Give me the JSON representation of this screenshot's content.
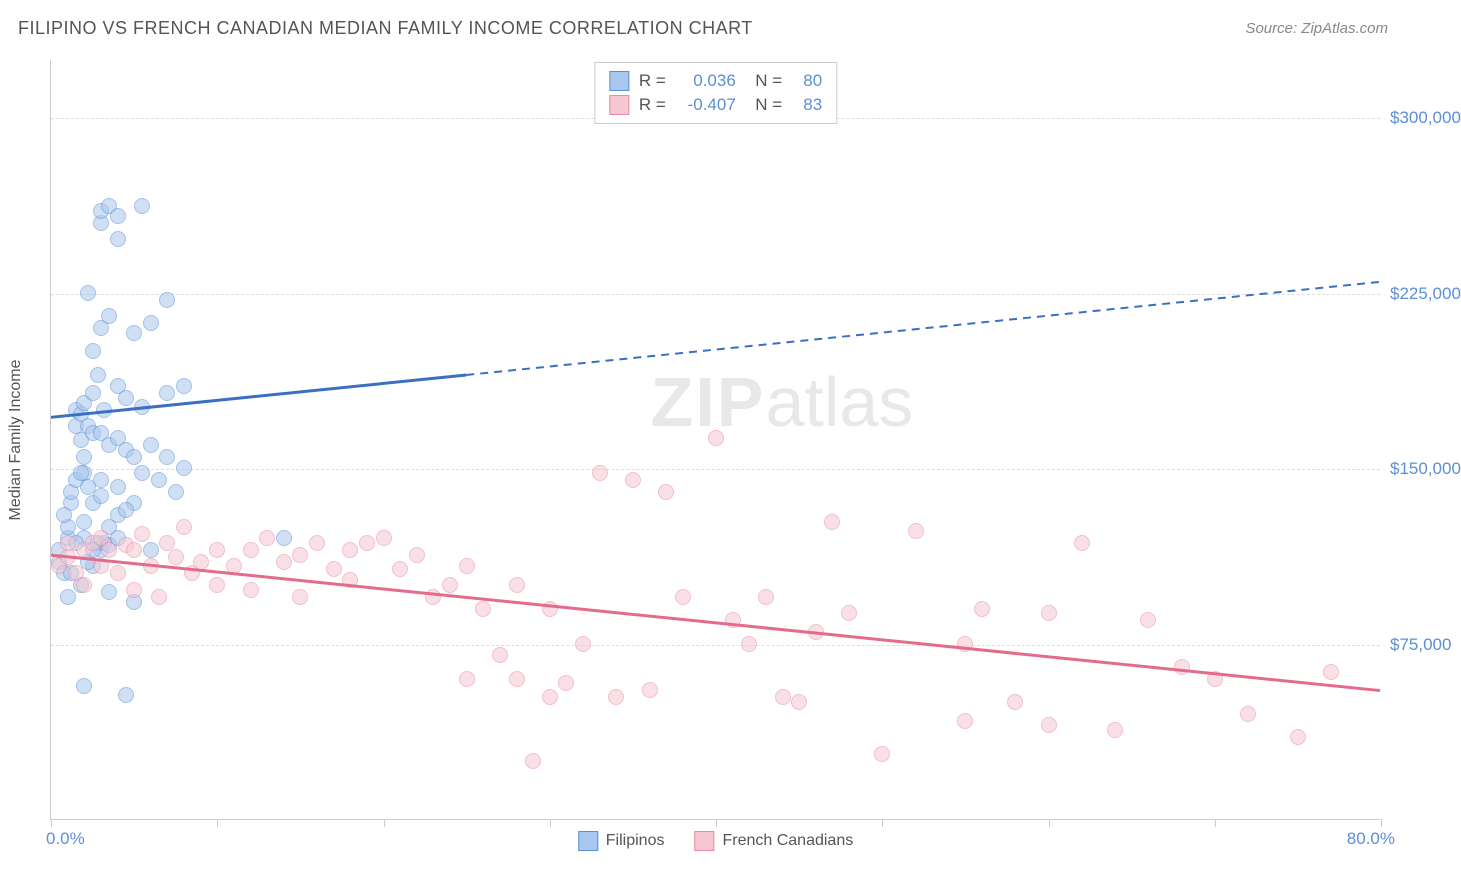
{
  "header": {
    "title": "FILIPINO VS FRENCH CANADIAN MEDIAN FAMILY INCOME CORRELATION CHART",
    "source": "Source: ZipAtlas.com"
  },
  "chart": {
    "type": "scatter",
    "y_axis_title": "Median Family Income",
    "xlim": [
      0,
      80
    ],
    "ylim": [
      0,
      325000
    ],
    "x_tick_step": 10,
    "x_min_label": "0.0%",
    "x_max_label": "80.0%",
    "y_ticks": [
      75000,
      150000,
      225000,
      300000
    ],
    "y_tick_labels": [
      "$75,000",
      "$150,000",
      "$225,000",
      "$300,000"
    ],
    "grid_color": "#dddddd",
    "border_color": "#cccccc",
    "tick_label_color": "#5b8fd6",
    "axis_title_color": "#555555",
    "background_color": "#ffffff",
    "watermark_text_bold": "ZIP",
    "watermark_text_light": "atlas",
    "watermark_color": "#e8e8e8",
    "point_radius": 8,
    "point_opacity": 0.55,
    "series": [
      {
        "name": "Filipinos",
        "fill_color": "#a9c7ee",
        "stroke_color": "#5b8fd6",
        "line_color": "#3a6fc4",
        "r_value": "0.036",
        "n_value": "80",
        "trend": {
          "y_at_xmin": 172000,
          "y_at_xmax": 230000,
          "solid_until_x": 25
        },
        "points": [
          [
            0.5,
            110000
          ],
          [
            0.5,
            115000
          ],
          [
            0.8,
            105000
          ],
          [
            1.0,
            120000
          ],
          [
            1.0,
            125000
          ],
          [
            1.2,
            135000
          ],
          [
            1.2,
            140000
          ],
          [
            1.5,
            145000
          ],
          [
            1.5,
            168000
          ],
          [
            1.5,
            175000
          ],
          [
            1.8,
            162000
          ],
          [
            1.8,
            173000
          ],
          [
            2.0,
            120000
          ],
          [
            2.0,
            127000
          ],
          [
            2.0,
            148000
          ],
          [
            2.0,
            155000
          ],
          [
            2.0,
            178000
          ],
          [
            2.2,
            168000
          ],
          [
            2.2,
            225000
          ],
          [
            2.5,
            135000
          ],
          [
            2.5,
            165000
          ],
          [
            2.5,
            182000
          ],
          [
            2.5,
            200000
          ],
          [
            2.8,
            190000
          ],
          [
            3.0,
            115000
          ],
          [
            3.0,
            145000
          ],
          [
            3.0,
            165000
          ],
          [
            3.0,
            210000
          ],
          [
            3.0,
            255000
          ],
          [
            3.0,
            260000
          ],
          [
            3.2,
            175000
          ],
          [
            3.5,
            97000
          ],
          [
            3.5,
            125000
          ],
          [
            3.5,
            160000
          ],
          [
            3.5,
            215000
          ],
          [
            3.5,
            262000
          ],
          [
            4.0,
            130000
          ],
          [
            4.0,
            142000
          ],
          [
            4.0,
            163000
          ],
          [
            4.0,
            185000
          ],
          [
            4.0,
            248000
          ],
          [
            4.0,
            258000
          ],
          [
            4.5,
            158000
          ],
          [
            4.5,
            180000
          ],
          [
            5.0,
            93000
          ],
          [
            5.0,
            135000
          ],
          [
            5.0,
            155000
          ],
          [
            5.0,
            208000
          ],
          [
            5.5,
            148000
          ],
          [
            5.5,
            176000
          ],
          [
            5.5,
            262000
          ],
          [
            6.0,
            115000
          ],
          [
            6.0,
            160000
          ],
          [
            6.0,
            212000
          ],
          [
            6.5,
            145000
          ],
          [
            7.0,
            155000
          ],
          [
            7.0,
            182000
          ],
          [
            7.0,
            222000
          ],
          [
            7.5,
            140000
          ],
          [
            8.0,
            150000
          ],
          [
            8.0,
            185000
          ],
          [
            2.0,
            57000
          ],
          [
            4.5,
            53000
          ],
          [
            3.2,
            118000
          ],
          [
            1.0,
            95000
          ],
          [
            2.5,
            108000
          ],
          [
            1.8,
            100000
          ],
          [
            2.8,
            118000
          ],
          [
            3.5,
            117000
          ],
          [
            4.0,
            120000
          ],
          [
            1.2,
            105000
          ],
          [
            2.2,
            110000
          ],
          [
            1.5,
            118000
          ],
          [
            2.5,
            115000
          ],
          [
            14.0,
            120000
          ],
          [
            3.0,
            138000
          ],
          [
            4.5,
            132000
          ],
          [
            1.8,
            148000
          ],
          [
            2.2,
            142000
          ],
          [
            0.8,
            130000
          ]
        ]
      },
      {
        "name": "French Canadians",
        "fill_color": "#f5c7d3",
        "stroke_color": "#e88ba3",
        "line_color": "#e56b8a",
        "r_value": "-0.407",
        "n_value": "83",
        "trend": {
          "y_at_xmin": 113000,
          "y_at_xmax": 55000,
          "solid_until_x": 80
        },
        "points": [
          [
            0.5,
            108000
          ],
          [
            1.0,
            112000
          ],
          [
            1.0,
            118000
          ],
          [
            1.5,
            105000
          ],
          [
            2.0,
            115000
          ],
          [
            2.0,
            100000
          ],
          [
            2.5,
            118000
          ],
          [
            3.0,
            108000
          ],
          [
            3.0,
            120000
          ],
          [
            3.5,
            115000
          ],
          [
            4.0,
            105000
          ],
          [
            4.5,
            117000
          ],
          [
            5.0,
            115000
          ],
          [
            5.0,
            98000
          ],
          [
            5.5,
            122000
          ],
          [
            6.0,
            108000
          ],
          [
            6.5,
            95000
          ],
          [
            7.0,
            118000
          ],
          [
            7.5,
            112000
          ],
          [
            8.0,
            125000
          ],
          [
            8.5,
            105000
          ],
          [
            9.0,
            110000
          ],
          [
            10.0,
            115000
          ],
          [
            10.0,
            100000
          ],
          [
            11.0,
            108000
          ],
          [
            12.0,
            98000
          ],
          [
            12.0,
            115000
          ],
          [
            13.0,
            120000
          ],
          [
            14.0,
            110000
          ],
          [
            15.0,
            113000
          ],
          [
            15.0,
            95000
          ],
          [
            16.0,
            118000
          ],
          [
            17.0,
            107000
          ],
          [
            18.0,
            102000
          ],
          [
            18.0,
            115000
          ],
          [
            19.0,
            118000
          ],
          [
            20.0,
            120000
          ],
          [
            21.0,
            107000
          ],
          [
            22.0,
            113000
          ],
          [
            23.0,
            95000
          ],
          [
            24.0,
            100000
          ],
          [
            25.0,
            60000
          ],
          [
            25.0,
            108000
          ],
          [
            26.0,
            90000
          ],
          [
            27.0,
            70000
          ],
          [
            28.0,
            60000
          ],
          [
            28.0,
            100000
          ],
          [
            29.0,
            25000
          ],
          [
            30.0,
            52000
          ],
          [
            30.0,
            90000
          ],
          [
            31.0,
            58000
          ],
          [
            32.0,
            75000
          ],
          [
            33.0,
            148000
          ],
          [
            34.0,
            52000
          ],
          [
            35.0,
            145000
          ],
          [
            36.0,
            55000
          ],
          [
            37.0,
            140000
          ],
          [
            38.0,
            95000
          ],
          [
            40.0,
            163000
          ],
          [
            41.0,
            85000
          ],
          [
            42.0,
            75000
          ],
          [
            43.0,
            95000
          ],
          [
            44.0,
            52000
          ],
          [
            45.0,
            50000
          ],
          [
            46.0,
            80000
          ],
          [
            47.0,
            127000
          ],
          [
            48.0,
            88000
          ],
          [
            50.0,
            28000
          ],
          [
            52.0,
            123000
          ],
          [
            55.0,
            75000
          ],
          [
            56.0,
            90000
          ],
          [
            58.0,
            50000
          ],
          [
            60.0,
            88000
          ],
          [
            60.0,
            40000
          ],
          [
            62.0,
            118000
          ],
          [
            64.0,
            38000
          ],
          [
            66.0,
            85000
          ],
          [
            68.0,
            65000
          ],
          [
            70.0,
            60000
          ],
          [
            72.0,
            45000
          ],
          [
            75.0,
            35000
          ],
          [
            77.0,
            63000
          ],
          [
            55.0,
            42000
          ]
        ]
      }
    ],
    "bottom_legend": [
      {
        "label": "Filipinos",
        "fill": "#a9c7ee",
        "stroke": "#5b8fd6"
      },
      {
        "label": "French Canadians",
        "fill": "#f5c7d3",
        "stroke": "#e88ba3"
      }
    ]
  }
}
